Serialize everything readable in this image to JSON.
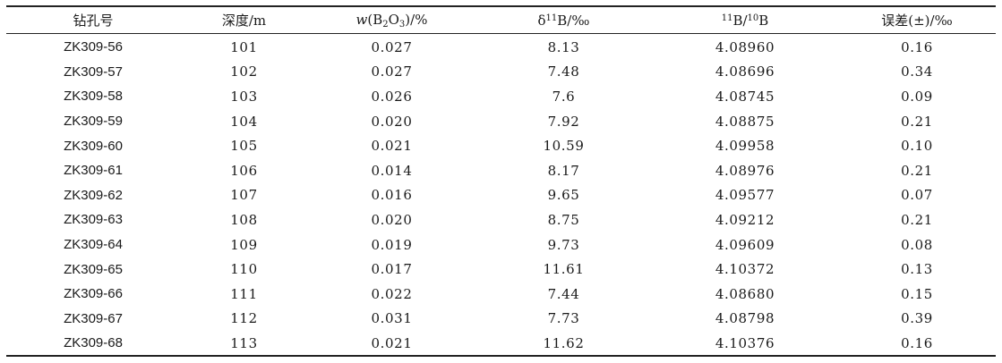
{
  "table": {
    "header": {
      "col1": "钻孔号",
      "col2": "深度/m",
      "col3": {
        "var": "w",
        "open": "(B",
        "sub1": "2",
        "mid": "O",
        "sub2": "3",
        "close": ")/%"
      },
      "col4": {
        "pre": "δ",
        "sup": "11",
        "post": "B/‰"
      },
      "col5": {
        "sup1": "11",
        "mid": "B/",
        "sup2": "10",
        "post": "B"
      },
      "col6": "误差(±)/‰"
    },
    "rows": [
      [
        "ZK309-56",
        "101",
        "0.027",
        "8.13",
        "4.08960",
        "0.16"
      ],
      [
        "ZK309-57",
        "102",
        "0.027",
        "7.48",
        "4.08696",
        "0.34"
      ],
      [
        "ZK309-58",
        "103",
        "0.026",
        "7.6",
        "4.08745",
        "0.09"
      ],
      [
        "ZK309-59",
        "104",
        "0.020",
        "7.92",
        "4.08875",
        "0.21"
      ],
      [
        "ZK309-60",
        "105",
        "0.021",
        "10.59",
        "4.09958",
        "0.10"
      ],
      [
        "ZK309-61",
        "106",
        "0.014",
        "8.17",
        "4.08976",
        "0.21"
      ],
      [
        "ZK309-62",
        "107",
        "0.016",
        "9.65",
        "4.09577",
        "0.07"
      ],
      [
        "ZK309-63",
        "108",
        "0.020",
        "8.75",
        "4.09212",
        "0.21"
      ],
      [
        "ZK309-64",
        "109",
        "0.019",
        "9.73",
        "4.09609",
        "0.08"
      ],
      [
        "ZK309-65",
        "110",
        "0.017",
        "11.61",
        "4.10372",
        "0.13"
      ],
      [
        "ZK309-66",
        "111",
        "0.022",
        "7.44",
        "4.08680",
        "0.15"
      ],
      [
        "ZK309-67",
        "112",
        "0.031",
        "7.73",
        "4.08798",
        "0.39"
      ],
      [
        "ZK309-68",
        "113",
        "0.021",
        "11.62",
        "4.10376",
        "0.16"
      ]
    ]
  }
}
